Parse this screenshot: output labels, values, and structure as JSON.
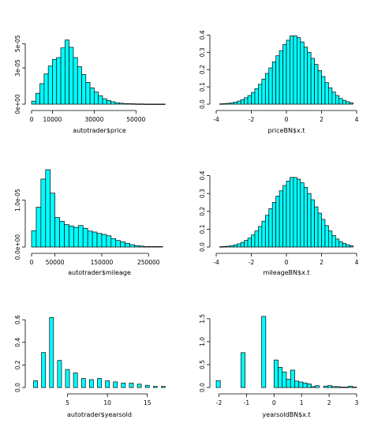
{
  "chart_data": [
    {
      "type": "bar",
      "xlabel": "autotrader$price",
      "ylabel": "",
      "x_range": [
        0,
        65000
      ],
      "y_range": [
        0,
        6e-05
      ],
      "x_ticks": [
        "0",
        "10000",
        "30000",
        "50000"
      ],
      "x_tick_values": [
        0,
        10000,
        30000,
        50000
      ],
      "y_ticks": [
        "0e+00",
        "3e-05",
        "5e-05"
      ],
      "y_tick_values": [
        0,
        3e-05,
        5e-05
      ],
      "fill": "#00ffff",
      "bin_start": 0,
      "bin_width": 2000,
      "values": [
        2.5e-06,
        9e-06,
        1.7e-05,
        2.5e-05,
        3.15e-05,
        3.7e-05,
        3.85e-05,
        4.65e-05,
        5.3e-05,
        4.7e-05,
        3.85e-05,
        3.1e-05,
        2.45e-05,
        1.8e-05,
        1.35e-05,
        1e-05,
        7e-06,
        4.5e-06,
        3e-06,
        2e-06,
        1.2e-06,
        8e-07,
        5e-07,
        4e-07,
        3e-07,
        2e-07,
        2e-07,
        1e-07,
        1e-07,
        1e-07,
        1e-07,
        1e-07
      ]
    },
    {
      "type": "bar",
      "xlabel": "priceBN$x.t",
      "ylabel": "",
      "x_range": [
        -4,
        4
      ],
      "y_range": [
        0,
        0.42
      ],
      "x_ticks": [
        "-4",
        "-2",
        "0",
        "2",
        "4"
      ],
      "x_tick_values": [
        -4,
        -2,
        0,
        2,
        4
      ],
      "y_ticks": [
        "0.0",
        "0.1",
        "0.2",
        "0.3",
        "0.4"
      ],
      "y_tick_values": [
        0,
        0.1,
        0.2,
        0.3,
        0.4
      ],
      "fill": "#00ffff",
      "bin_start": -3.8,
      "bin_width": 0.2,
      "values": [
        0.002,
        0.003,
        0.005,
        0.008,
        0.012,
        0.018,
        0.026,
        0.037,
        0.05,
        0.068,
        0.09,
        0.115,
        0.145,
        0.178,
        0.21,
        0.245,
        0.28,
        0.31,
        0.345,
        0.37,
        0.395,
        0.395,
        0.385,
        0.36,
        0.33,
        0.3,
        0.265,
        0.23,
        0.195,
        0.16,
        0.125,
        0.095,
        0.07,
        0.05,
        0.033,
        0.022,
        0.014,
        0.008
      ]
    },
    {
      "type": "bar",
      "xlabel": "autotrader$mileage",
      "ylabel": "",
      "x_range": [
        0,
        290000
      ],
      "y_range": [
        0,
        1.6e-05
      ],
      "x_ticks": [
        "0",
        "50000",
        "150000",
        "250000"
      ],
      "x_tick_values": [
        0,
        50000,
        150000,
        250000
      ],
      "y_ticks": [
        "0.0e+00",
        "1.0e-05"
      ],
      "y_tick_values": [
        0,
        1e-05
      ],
      "fill": "#00ffff",
      "bin_start": 0,
      "bin_width": 10000,
      "values": [
        3.5e-06,
        8.5e-06,
        1.45e-05,
        1.65e-05,
        1.15e-05,
        6.3e-06,
        5.5e-06,
        4.8e-06,
        4.5e-06,
        4.2e-06,
        4.6e-06,
        4e-06,
        3.4e-06,
        3.2e-06,
        2.9e-06,
        2.7e-06,
        2.4e-06,
        1.8e-06,
        1.4e-06,
        1.1e-06,
        8e-07,
        5e-07,
        3e-07,
        2e-07,
        1e-07,
        1e-07,
        1e-07,
        1e-07
      ]
    },
    {
      "type": "bar",
      "xlabel": "mileageBN$x.t",
      "ylabel": "",
      "x_range": [
        -4,
        4
      ],
      "y_range": [
        0,
        0.42
      ],
      "x_ticks": [
        "-4",
        "-2",
        "0",
        "2",
        "4"
      ],
      "x_tick_values": [
        -4,
        -2,
        0,
        2,
        4
      ],
      "y_ticks": [
        "0.0",
        "0.1",
        "0.2",
        "0.3",
        "0.4"
      ],
      "y_tick_values": [
        0,
        0.1,
        0.2,
        0.3,
        0.4
      ],
      "fill": "#00ffff",
      "bin_start": -3.8,
      "bin_width": 0.2,
      "values": [
        0.002,
        0.003,
        0.005,
        0.008,
        0.012,
        0.018,
        0.026,
        0.037,
        0.05,
        0.068,
        0.09,
        0.115,
        0.145,
        0.178,
        0.215,
        0.25,
        0.285,
        0.315,
        0.345,
        0.37,
        0.39,
        0.39,
        0.38,
        0.36,
        0.335,
        0.3,
        0.265,
        0.225,
        0.19,
        0.155,
        0.12,
        0.09,
        0.065,
        0.045,
        0.03,
        0.02,
        0.013,
        0.007
      ]
    },
    {
      "type": "bar",
      "xlabel": "autotrader$yearsold",
      "ylabel": "",
      "x_range": [
        0.5,
        17.5
      ],
      "y_range": [
        0,
        0.65
      ],
      "x_ticks": [
        "5",
        "10",
        "15"
      ],
      "x_tick_values": [
        5,
        10,
        15
      ],
      "y_ticks": [
        "0.0",
        "0.2",
        "0.4",
        "0.6"
      ],
      "y_tick_values": [
        0,
        0.2,
        0.4,
        0.6
      ],
      "fill": "#00ffff",
      "bar_centers": [
        1,
        2,
        3,
        4,
        5,
        6,
        7,
        8,
        9,
        10,
        11,
        12,
        13,
        14,
        15,
        16,
        17
      ],
      "bar_width": 0.5,
      "values": [
        0.06,
        0.31,
        0.62,
        0.24,
        0.16,
        0.13,
        0.08,
        0.07,
        0.08,
        0.06,
        0.05,
        0.04,
        0.04,
        0.03,
        0.02,
        0.01,
        0.01
      ]
    },
    {
      "type": "bar",
      "xlabel": "yearsoldBN$x.t",
      "ylabel": "",
      "x_range": [
        -2.1,
        3.0
      ],
      "y_range": [
        0,
        1.6
      ],
      "x_ticks": [
        "-2",
        "-1",
        "0",
        "1",
        "2",
        "3"
      ],
      "x_tick_values": [
        -2,
        -1,
        0,
        1,
        2,
        3
      ],
      "y_ticks": [
        "0.0",
        "0.5",
        "1.0",
        "1.5"
      ],
      "y_tick_values": [
        0,
        0.5,
        1.0,
        1.5
      ],
      "fill": "#00ffff",
      "bin_start": -2.1,
      "bin_width": 0.15,
      "values": [
        0.15,
        0,
        0,
        0,
        0,
        0,
        0.76,
        0,
        0,
        0,
        0,
        1.55,
        0,
        0,
        0.6,
        0.44,
        0.34,
        0.18,
        0.38,
        0.14,
        0.12,
        0.1,
        0.08,
        0.02,
        0.04,
        0,
        0.03,
        0.04,
        0.02,
        0.02,
        0.01,
        0.01,
        0.03,
        0.01
      ]
    }
  ]
}
